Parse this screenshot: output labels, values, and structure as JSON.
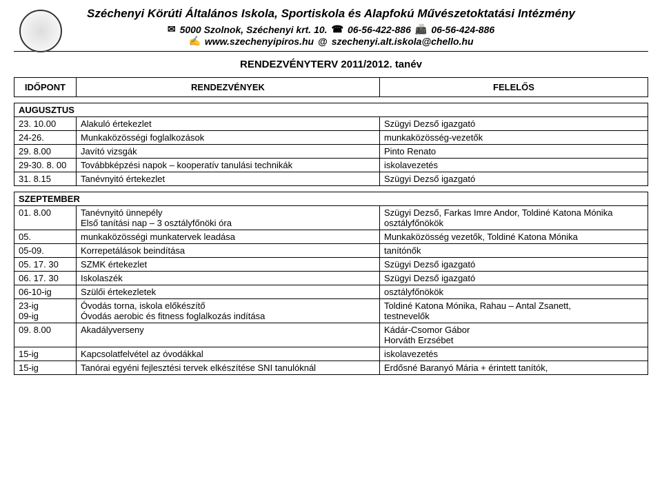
{
  "header": {
    "school_name": "Széchenyi Körúti Általános Iskola, Sportiskola és Alapfokú Művészetoktatási Intézmény",
    "address": "5000 Szolnok, Széchenyi krt. 10.",
    "phone": "06-56-422-886",
    "fax": "06-56-424-886",
    "web": "www.szechenyipiros.hu",
    "email": "szechenyi.alt.iskola@chello.hu",
    "mail_icon": "✉",
    "phone_icon": "☎",
    "fax_icon": "📠",
    "hand_icon": "✍",
    "at_icon": "@"
  },
  "doc_title": "RENDEZVÉNYTERV 2011/2012. tanév",
  "table_headers": {
    "date": "IDŐPONT",
    "event": "RENDEZVÉNYEK",
    "responsible": "FELELŐS"
  },
  "months": [
    {
      "label": "AUGUSZTUS",
      "rows": [
        {
          "date": "23. 10.00",
          "event": "Alakuló értekezlet",
          "resp": "Szügyi Dezső igazgató"
        },
        {
          "date": "24-26.",
          "event": "Munkaközösségi foglalkozások",
          "resp": "munkaközösség-vezetők"
        },
        {
          "date": "29. 8.00",
          "event": "Javító vizsgák",
          "resp": "Pinto Renato"
        },
        {
          "date": "29-30. 8. 00",
          "event": "Továbbképzési napok – kooperatív tanulási technikák",
          "resp": "iskolavezetés"
        },
        {
          "date": "31. 8.15",
          "event": "Tanévnyitó értekezlet",
          "resp": "Szügyi Dezső igazgató"
        }
      ]
    },
    {
      "label": "SZEPTEMBER",
      "rows": [
        {
          "date": "01. 8.00",
          "event": "Tanévnyitó ünnepély\nElső tanítási nap – 3 osztályfőnöki óra",
          "resp": "Szügyi Dezső, Farkas Imre Andor, Toldiné Katona Mónika\nosztályfőnökök"
        },
        {
          "date": "05.",
          "event": "munkaközösségi munkatervek leadása",
          "resp": "Munkaközösség vezetők, Toldiné Katona Mónika"
        },
        {
          "date": "05-09.",
          "event": "Korrepetálások beindítása",
          "resp": "tanítónők"
        },
        {
          "date": "05. 17. 30",
          "event": "SZMK értekezlet",
          "resp": "Szügyi Dezső igazgató"
        },
        {
          "date": "06. 17. 30",
          "event": "Iskolaszék",
          "resp": "Szügyi Dezső igazgató"
        },
        {
          "date": "06-10-ig",
          "event": "Szülői értekezletek",
          "resp": "osztályfőnökök"
        },
        {
          "date": "23-ig\n09-ig",
          "event": "Óvodás torna, iskola előkészítő\nÓvodás aerobic és fitness foglalkozás indítása",
          "resp": "Toldiné Katona Mónika, Rahau – Antal Zsanett,\ntestnevelők"
        },
        {
          "date": "09. 8.00",
          "event": "Akadályverseny",
          "resp": "Kádár-Csomor Gábor\nHorváth Erzsébet"
        },
        {
          "date": "15-ig",
          "event": "Kapcsolatfelvétel az óvodákkal",
          "resp": "iskolavezetés"
        },
        {
          "date": "15-ig",
          "event": "Tanórai egyéni fejlesztési tervek elkészítése SNI tanulóknál",
          "resp": "Erdősné Baranyó Mária + érintett tanítók,"
        }
      ]
    }
  ]
}
